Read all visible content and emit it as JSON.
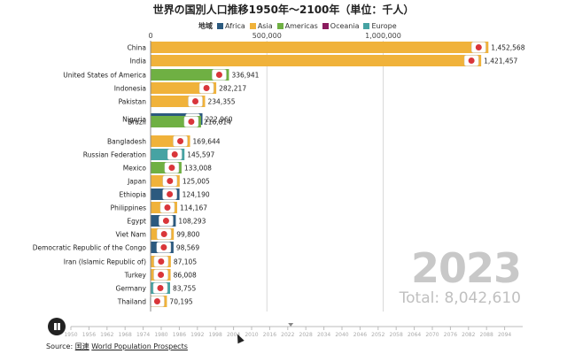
{
  "chart_data": {
    "type": "bar",
    "title": "世界の国別人口推移1950年〜2100年（単位：千人）",
    "legend": {
      "title": "地域",
      "entries": [
        {
          "name": "Africa",
          "color": "#2c5a7f"
        },
        {
          "name": "Asia",
          "color": "#f0b23a"
        },
        {
          "name": "Americas",
          "color": "#6fb043"
        },
        {
          "name": "Oceania",
          "color": "#8b1c5e"
        },
        {
          "name": "Europe",
          "color": "#46a3a3"
        }
      ]
    },
    "xlim": [
      0,
      1600000
    ],
    "x_ticks": [
      0,
      500000,
      1000000
    ],
    "x_tick_labels": [
      "0",
      "500,000",
      "1,000,000"
    ],
    "categories": [
      "China",
      "India",
      "United States of America",
      "Indonesia",
      "Pakistan",
      "Nigeria",
      "Brazil",
      "Bangladesh",
      "Russian Federation",
      "Mexico",
      "Japan",
      "Ethiopia",
      "Philippines",
      "Egypt",
      "Viet Nam",
      "Democratic Republic of the Congo",
      "Iran (Islamic Republic of)",
      "Turkey",
      "Germany",
      "Thailand"
    ],
    "values": [
      1452568,
      1421457,
      336941,
      282217,
      234355,
      222960,
      216814,
      169644,
      145597,
      133008,
      125005,
      124190,
      114167,
      108293,
      99800,
      98569,
      87105,
      86008,
      83755,
      70195
    ],
    "value_labels": [
      "1,452,568",
      "1,421,457",
      "336,941",
      "282,217",
      "234,355",
      "222,960",
      "216,814",
      "169,644",
      "145,597",
      "133,008",
      "125,005",
      "124,190",
      "114,167",
      "108,293",
      "99,800",
      "98,569",
      "87,105",
      "86,008",
      "83,755",
      "70,195"
    ],
    "regions": [
      "Asia",
      "Asia",
      "Americas",
      "Asia",
      "Asia",
      "Africa",
      "Americas",
      "Asia",
      "Europe",
      "Americas",
      "Asia",
      "Africa",
      "Asia",
      "Africa",
      "Asia",
      "Africa",
      "Asia",
      "Asia",
      "Europe",
      "Asia"
    ],
    "year": "2023",
    "total_label": "Total: 8,042,610",
    "timeline": {
      "ticks": [
        "1950",
        "1956",
        "1962",
        "1968",
        "1974",
        "1980",
        "1986",
        "1992",
        "1998",
        "2004",
        "2010",
        "2016",
        "2022",
        "2028",
        "2034",
        "2040",
        "2046",
        "2052",
        "2058",
        "2064",
        "2070",
        "2076",
        "2082",
        "2088",
        "2094"
      ],
      "range": [
        1950,
        2100
      ],
      "current": 2023
    }
  },
  "source": {
    "label": "Source:",
    "link1": "国連",
    "link2": "World Population Prospects"
  }
}
